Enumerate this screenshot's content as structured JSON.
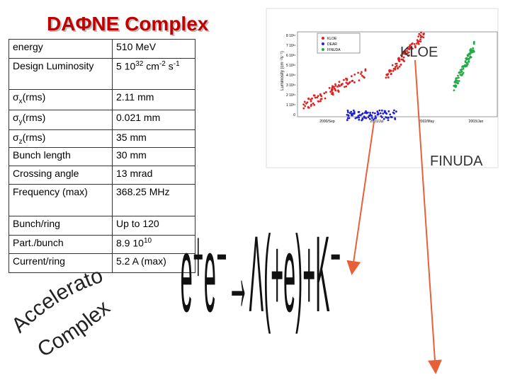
{
  "header": {
    "title": "DAΦNE Complex"
  },
  "table": {
    "rows": [
      [
        "energy",
        "510 MeV"
      ],
      [
        "Design Luminosity",
        [
          "5 10",
          "32",
          " cm",
          "-2",
          " s",
          "-1"
        ]
      ],
      [
        [
          "σ",
          "x",
          "(rms)"
        ],
        "2.11 mm"
      ],
      [
        [
          "σ",
          "y",
          "(rms)"
        ],
        "0.021 mm"
      ],
      [
        [
          "σ",
          "z",
          "(rms)"
        ],
        "35 mm"
      ],
      [
        "Bunch length",
        "30 mm"
      ],
      [
        "Crossing angle",
        "13 mrad"
      ],
      [
        "Frequency (max)",
        "368.25 MHz"
      ],
      [
        "Bunch/ring",
        "Up to 120"
      ],
      [
        "Part./bunch",
        [
          "8.9 10",
          "10"
        ]
      ],
      [
        "Current/ring",
        "5.2 A (max)"
      ]
    ]
  },
  "plot": {
    "y_label": "Luminosity (cm⁻²s⁻¹)",
    "y_ticks": [
      "8 10³¹",
      "7 10³¹",
      "6 10³¹",
      "5 10³¹",
      "4 10³¹",
      "3 10³¹",
      "2 10³¹",
      "1 10³¹",
      "0"
    ],
    "x_ticks": [
      "2000/Sep",
      "2001/Jul",
      "2002/May",
      "2003/Jan"
    ],
    "legend": [
      "KLOE",
      "DEAR",
      "FINUDA"
    ]
  },
  "labels": {
    "kloe": "KLOE",
    "finuda": "FINUDA",
    "curve1": "Accelerator",
    "curve2": "Complex",
    "formula": "e⁺e⁻→Λ(+e)+K⁻"
  }
}
